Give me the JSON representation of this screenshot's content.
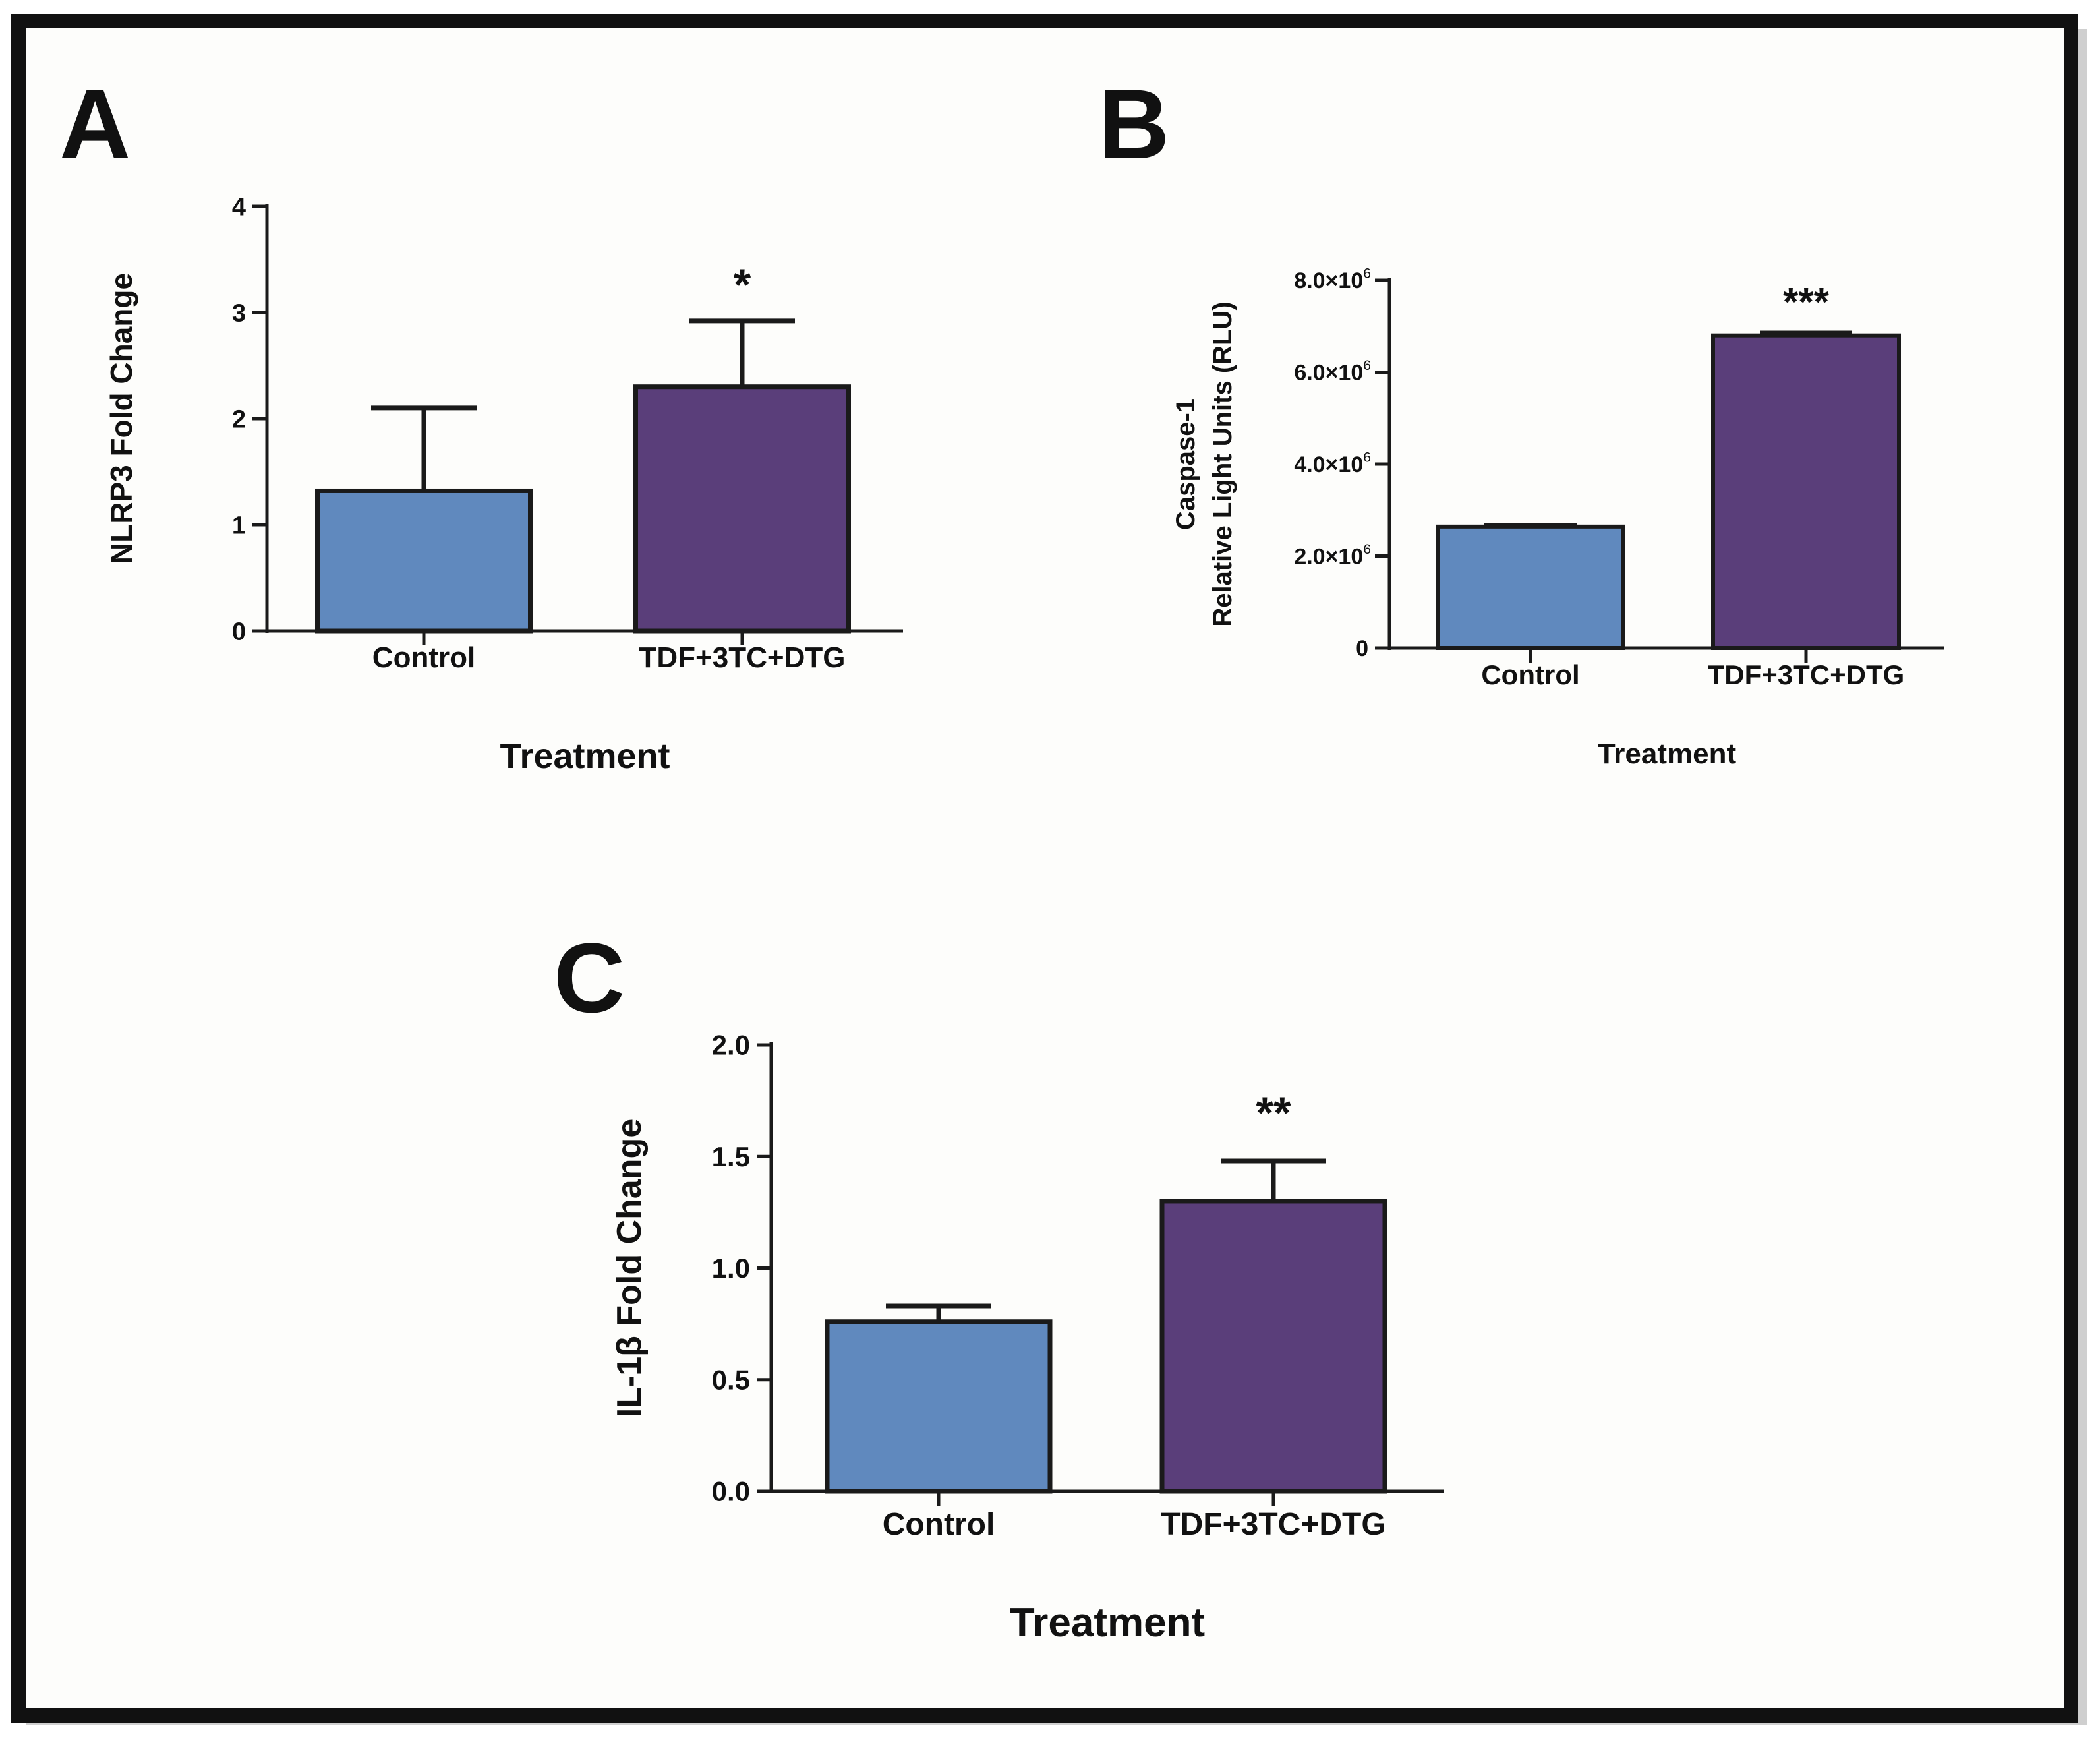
{
  "colors": {
    "control": "#6089be",
    "treatment": "#5a3e7a",
    "axis": "#1a1a1a",
    "frame": "#111111"
  },
  "chart_data": [
    {
      "panel": "A",
      "type": "bar",
      "categories": [
        "Control",
        "TDF+3TC+DTG"
      ],
      "values": [
        1.32,
        2.3
      ],
      "errors": [
        0.78,
        0.62
      ],
      "significance": [
        "",
        "*"
      ],
      "xlabel": "Treatment",
      "ylabel": "NLRP3 Fold Change",
      "ylim": [
        0,
        4
      ],
      "yticks": [
        0,
        1,
        2,
        3,
        4
      ],
      "ytick_labels": [
        "0",
        "1",
        "2",
        "3",
        "4"
      ]
    },
    {
      "panel": "B",
      "type": "bar",
      "categories": [
        "Control",
        "TDF+3TC+DTG"
      ],
      "values": [
        2640000,
        6800000
      ],
      "errors": [
        40000,
        60000
      ],
      "significance": [
        "",
        "***"
      ],
      "xlabel": "Treatment",
      "ylabel_lines": [
        "Caspase-1",
        "Relative Light Units (RLU)"
      ],
      "ylim": [
        0,
        8000000
      ],
      "yticks": [
        0,
        2000000,
        4000000,
        6000000,
        8000000
      ],
      "ytick_labels": [
        "0",
        "2.0×10",
        "4.0×10",
        "6.0×10",
        "8.0×10"
      ],
      "ytick_exponent": "6"
    },
    {
      "panel": "C",
      "type": "bar",
      "categories": [
        "Control",
        "TDF+3TC+DTG"
      ],
      "values": [
        0.76,
        1.3
      ],
      "errors": [
        0.07,
        0.18
      ],
      "significance": [
        "",
        "**"
      ],
      "xlabel": "Treatment",
      "ylabel": "IL-1β Fold Change",
      "ylim": [
        0,
        2
      ],
      "yticks": [
        0,
        0.5,
        1,
        1.5,
        2
      ],
      "ytick_labels": [
        "0.0",
        "0.5",
        "1.0",
        "1.5",
        "2.0"
      ]
    }
  ]
}
